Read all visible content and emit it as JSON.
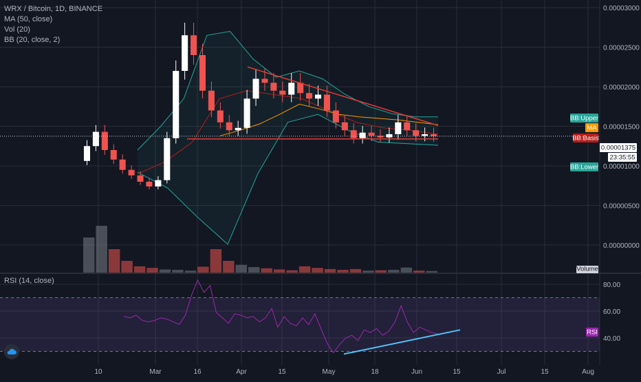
{
  "legend": {
    "title": "WRX / Bitcoin, 1D, BINANCE",
    "ma": "MA (50, close)",
    "vol": "Vol (20)",
    "bb": "BB (20, close, 2)",
    "rsi": "RSI (14, close)"
  },
  "tags": {
    "bb_upper": "BB:Upper",
    "ma": "MA",
    "bb_basis": "BB:Basis",
    "last_price": "0.00001375",
    "countdown": "23:35:55",
    "bb_lower": "BB:Lower",
    "volume": "Volume",
    "rsi": "RSI"
  },
  "colors": {
    "background": "#131722",
    "grid": "#2a2e39",
    "up_candle": "#ffffff",
    "down_candle": "#ef5350",
    "bollinger": "#26a69a",
    "bb_basis": "#b71c1c",
    "ma": "#ff9800",
    "trendline": "#e53935",
    "rsi_line": "#9c27b0",
    "rsi_band": "#7e57c2",
    "rsi_trendline": "#4fc3f7"
  },
  "chart_data": [
    {
      "type": "candlestick",
      "title": "WRX / Bitcoin, 1D, BINANCE",
      "x_ticks": [
        "10",
        "Mar",
        "16",
        "Apr",
        "15",
        "May",
        "18",
        "Jun",
        "15",
        "Jul",
        "15",
        "Aug"
      ],
      "y_ticks": [
        "0.00003000",
        "0.00002500",
        "0.00002000",
        "0.00001500",
        "0.00001000",
        "0.00000500",
        "0.00000000"
      ],
      "ylim": [
        -1e-06,
        3.1e-05
      ],
      "last_price": 1.375e-05,
      "series": [
        {
          "name": "Price (close)",
          "values": [
            1.25e-05,
            1.43e-05,
            1.2e-05,
            1.08e-05,
            9.5e-06,
            8.8e-06,
            8e-06,
            7.4e-06,
            8.2e-06,
            1.35e-05,
            2.2e-05,
            2.65e-05,
            2.4e-05,
            1.95e-05,
            1.7e-05,
            1.55e-05,
            1.45e-05,
            1.48e-05,
            1.85e-05,
            2.1e-05,
            2.05e-05,
            1.95e-05,
            1.9e-05,
            2.05e-05,
            1.92e-05,
            1.85e-05,
            1.9e-05,
            1.7e-05,
            1.55e-05,
            1.45e-05,
            1.35e-05,
            1.42e-05,
            1.38e-05,
            1.36e-05,
            1.4e-05,
            1.55e-05,
            1.45e-05,
            1.38e-05,
            1.4e-05,
            1.375e-05
          ]
        },
        {
          "name": "MA (50, close)",
          "values": [
            1.38e-05,
            1.45e-05,
            1.53e-05,
            1.65e-05,
            1.78e-05,
            1.72e-05,
            1.65e-05,
            1.62e-05,
            1.6e-05,
            1.58e-05,
            1.55e-05,
            1.52e-05
          ]
        },
        {
          "name": "BB:Upper",
          "values": [
            1.2e-05,
            1.5e-05,
            1.85e-05,
            2.65e-05,
            2.7e-05,
            2.35e-05,
            2.12e-05,
            2.2e-05,
            2.1e-05,
            1.9e-05,
            1.75e-05,
            1.66e-05,
            1.62e-05,
            1.62e-05
          ]
        },
        {
          "name": "BB:Basis",
          "values": [
            9e-06,
            1.05e-05,
            1.3e-05,
            1.85e-05,
            1.95e-05,
            1.9e-05,
            1.85e-05,
            1.7e-05,
            1.55e-05,
            1.48e-05,
            1.45e-05,
            1.4e-05
          ]
        },
        {
          "name": "BB:Lower",
          "values": [
            9.2e-06,
            7.2e-06,
            3.5e-06,
            1e-07,
            9e-06,
            1.55e-05,
            1.65e-05,
            1.45e-05,
            1.3e-05,
            1.28e-05,
            1.26e-05
          ]
        },
        {
          "name": "Volume",
          "values": [
            9,
            12,
            6,
            3,
            1.6,
            1.2,
            0.8,
            0.7,
            0.5,
            1.5,
            6,
            3,
            2,
            1.4,
            1.1,
            0.8,
            0.6,
            1.6,
            1.2,
            0.9,
            0.7,
            0.9,
            0.5,
            0.6,
            0.7,
            1.3,
            0.5,
            0.4
          ]
        }
      ]
    },
    {
      "type": "line",
      "title": "RSI (14, close)",
      "y_ticks": [
        "80.00",
        "60.00",
        "40.00"
      ],
      "ylim": [
        24,
        88
      ],
      "bands": [
        30,
        70
      ],
      "series": [
        {
          "name": "RSI",
          "values": [
            56,
            55,
            57,
            53,
            52,
            53,
            55,
            54,
            52,
            50,
            57,
            72,
            83,
            74,
            79,
            59,
            55,
            51,
            58,
            57,
            55,
            56,
            52,
            55,
            62,
            48,
            56,
            51,
            49,
            55,
            50,
            58,
            47,
            36,
            29,
            35,
            40,
            42,
            38,
            46,
            44,
            47,
            42,
            45,
            52,
            64,
            52,
            44,
            48,
            46,
            44,
            43
          ]
        },
        {
          "name": "RSI trendline",
          "values": [
            28,
            46
          ]
        }
      ]
    }
  ]
}
